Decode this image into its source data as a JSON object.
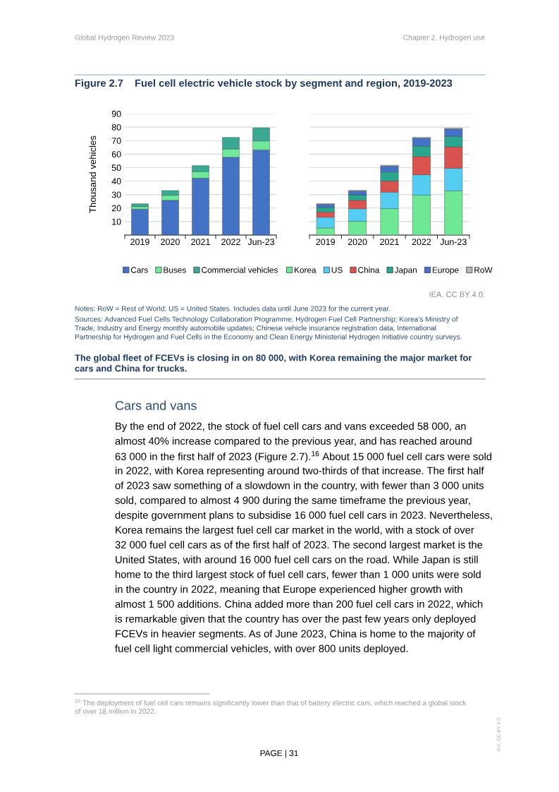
{
  "chart_data": [
    {
      "type": "bar",
      "title": "Figure 2.7    Fuel cell electric vehicle stock by segment and region, 2019-2023",
      "ylabel": "Thousand vehicles",
      "categories": [
        "2019",
        "2020",
        "2021",
        "2022",
        "Jun-23"
      ],
      "stacked": true,
      "ylim": [
        0,
        90
      ],
      "yticks": [
        10,
        20,
        30,
        40,
        50,
        60,
        70,
        80,
        90
      ],
      "grid": "y",
      "legend": "bottom",
      "series": [
        {
          "name": "Cars",
          "color": "#4472c4",
          "values": [
            19.2,
            25.8,
            42.2,
            57.7,
            63.1
          ]
        },
        {
          "name": "Buses",
          "color": "#6ee89a",
          "values": [
            1.9,
            3.7,
            4.9,
            6.1,
            6.7
          ]
        },
        {
          "name": "Commercial vehicles",
          "color": "#3aa893",
          "values": [
            2.1,
            3.5,
            4.4,
            8.6,
            9.7
          ]
        }
      ]
    },
    {
      "type": "bar",
      "categories": [
        "2019",
        "2020",
        "2021",
        "2022",
        "Jun-23"
      ],
      "stacked": true,
      "ylim": [
        0,
        90
      ],
      "yticks": [
        10,
        20,
        30,
        40,
        50,
        60,
        70,
        80,
        90
      ],
      "tick_labels": "x",
      "grid": "y",
      "legend": "bottom",
      "annotations": [
        "IEA. CC BY 4.0."
      ],
      "series": [
        {
          "name": "Korea",
          "color": "#6ee895",
          "values": [
            5.3,
            10.2,
            19.6,
            29.6,
            32.8
          ]
        },
        {
          "name": "US",
          "color": "#55cdf3",
          "values": [
            7.9,
            9.3,
            12.2,
            15.1,
            16.7
          ]
        },
        {
          "name": "China",
          "color": "#d9534f",
          "values": [
            3.8,
            6.3,
            8.2,
            13.5,
            15.8
          ]
        },
        {
          "name": "Japan",
          "color": "#2ba68e",
          "values": [
            3.5,
            4.0,
            6.8,
            7.8,
            7.9
          ]
        },
        {
          "name": "Europe",
          "color": "#4572c6",
          "values": [
            2.3,
            2.8,
            4.3,
            5.8,
            5.4
          ]
        },
        {
          "name": "RoW",
          "color": "#b5b5b5",
          "values": [
            0.5,
            0.6,
            0.7,
            0.7,
            0.7
          ]
        }
      ]
    },
    {
      "type": "other",
      "annotations": [
        "Global Hydrogen Review 2023",
        "Chapter 2. Hydrogen use",
        "Notes: RoW = Rest of World; US = United States. Includes data until June 2023 for the current year.",
        "Sources: Advanced Fuel Cells Technology Collaboration Programme; Hydrogen Fuel Cell Partnership; Korea’s Ministry of",
        "Trade, Industry and Energy monthly automobile updates; Chinese vehicle insurance registration data, International",
        "Partnership for Hydrogen and Fuel Cells in the Economy and Clean Energy Ministerial Hydrogen Initiative country surveys.",
        "The global fleet of FCEVs is closing in on 80 000, with Korea remaining the major market for",
        "cars and China for trucks.",
        "Cars and vans",
        "By the end of 2022, the stock of fuel cell cars and vans exceeded 58 000, an",
        "almost 40% increase compared to the previous year, and has reached around",
        "63 000 in the first half of 2023 (Figure 2.7).$^{16}$ About 15 000 fuel cell cars were sold",
        "in 2022, with Korea representing around two-thirds of that increase. The first half",
        "of 2023 saw something of a slowdown in the country, with fewer than 3 000 units",
        "sold, compared to almost 4 900 during the same timeframe the previous year,",
        "despite government plans to subsidise 16 000 fuel cell cars in 2023. Nevertheless,",
        "Korea remains the largest fuel cell car market in the world, with a stock of over",
        "32 000 fuel cell cars as of the first half of 2023. The second largest market is the",
        "United States, with around 16 000 fuel cell cars on the road. While Japan is still",
        "home to the third largest stock of fuel cell cars, fewer than 1 000 units were sold",
        "in the country in 2022, meaning that Europe experienced higher growth with",
        "almost 1 500 additions. China added more than 200 fuel cell cars in 2022, which",
        "is remarkable given that the country has over the past few years only deployed",
        "FCEVs in heavier segments. As of June 2023, China is home to the majority of",
        "fuel cell light commercial vehicles, with over 800 units deployed.",
        "$^{16}$ The deployment of fuel cell cars remains significantly lower than that of battery electric cars, which reached a global stock",
        "of over 18 million in 2022.",
        "PAGE | 31",
        "IEA. CC BY 4.0."
      ]
    }
  ]
}
